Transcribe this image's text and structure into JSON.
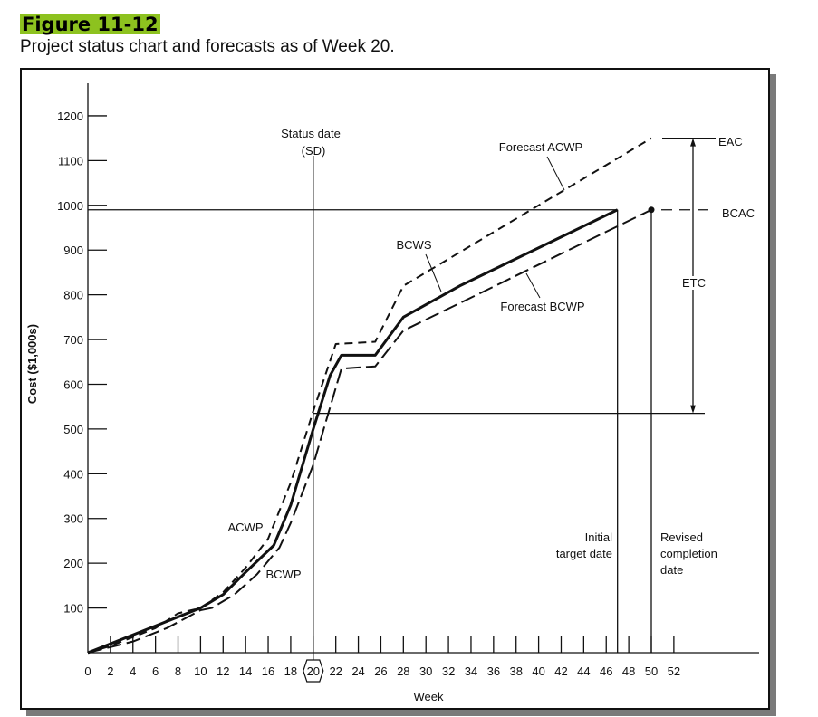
{
  "figure_label": "Figure 11-12",
  "caption": "Project status chart and forecasts as of Week 20.",
  "chart_data": {
    "type": "line",
    "title": "Project status chart and forecasts as of Week 20.",
    "xlabel": "Week",
    "ylabel": "Cost ($1,000s)",
    "xlim": [
      0,
      56
    ],
    "ylim": [
      0,
      1200
    ],
    "x_ticks": [
      0,
      2,
      4,
      6,
      8,
      10,
      12,
      14,
      16,
      18,
      20,
      22,
      24,
      26,
      28,
      30,
      32,
      34,
      36,
      38,
      40,
      42,
      44,
      46,
      48,
      50,
      52
    ],
    "y_ticks": [
      100,
      200,
      300,
      400,
      500,
      600,
      700,
      800,
      900,
      1000,
      1100,
      1200
    ],
    "highlighted_x_tick": 20,
    "series": [
      {
        "name": "BCWS",
        "style": "solid",
        "points": [
          [
            0,
            0
          ],
          [
            2,
            20
          ],
          [
            6,
            60
          ],
          [
            10,
            100
          ],
          [
            12,
            130
          ],
          [
            14,
            180
          ],
          [
            16.5,
            240
          ],
          [
            18,
            330
          ],
          [
            20,
            500
          ],
          [
            21.5,
            620
          ],
          [
            22.5,
            665
          ],
          [
            25.5,
            665
          ],
          [
            28,
            750
          ],
          [
            33,
            820
          ],
          [
            47,
            990
          ]
        ]
      },
      {
        "name": "ACWP / Forecast ACWP",
        "style": "dashed",
        "points": [
          [
            0,
            0
          ],
          [
            2,
            15
          ],
          [
            6,
            55
          ],
          [
            8,
            88
          ],
          [
            10,
            100
          ],
          [
            12,
            135
          ],
          [
            14,
            190
          ],
          [
            16,
            255
          ],
          [
            18,
            380
          ],
          [
            20,
            540
          ],
          [
            22,
            690
          ],
          [
            25.5,
            695
          ],
          [
            28,
            820
          ],
          [
            50,
            1150
          ]
        ]
      },
      {
        "name": "BCWP / Forecast BCWP",
        "style": "long-dash",
        "points": [
          [
            0,
            0
          ],
          [
            4,
            25
          ],
          [
            7,
            55
          ],
          [
            10,
            95
          ],
          [
            11,
            100
          ],
          [
            13,
            130
          ],
          [
            15,
            175
          ],
          [
            17,
            235
          ],
          [
            18,
            290
          ],
          [
            20,
            420
          ],
          [
            22.5,
            635
          ],
          [
            25.5,
            640
          ],
          [
            28,
            720
          ],
          [
            50,
            990
          ]
        ]
      }
    ],
    "reference_values": {
      "status_week": 20,
      "status_cost": 535,
      "initial_target_week": 47,
      "revised_completion_week": 50,
      "BCAC": 990,
      "EAC": 1150
    },
    "annotations": {
      "status_date": [
        "Status date",
        "(SD)"
      ],
      "forecast_acwp": "Forecast ACWP",
      "forecast_bcwp": "Forecast BCWP",
      "bcws": "BCWS",
      "acwp": "ACWP",
      "bcwp": "BCWP",
      "initial_target": [
        "Initial",
        "target date"
      ],
      "revised_completion": [
        "Revised",
        "completion",
        "date"
      ],
      "eac": "EAC",
      "bcac": "BCAC",
      "etc": "ETC"
    }
  }
}
